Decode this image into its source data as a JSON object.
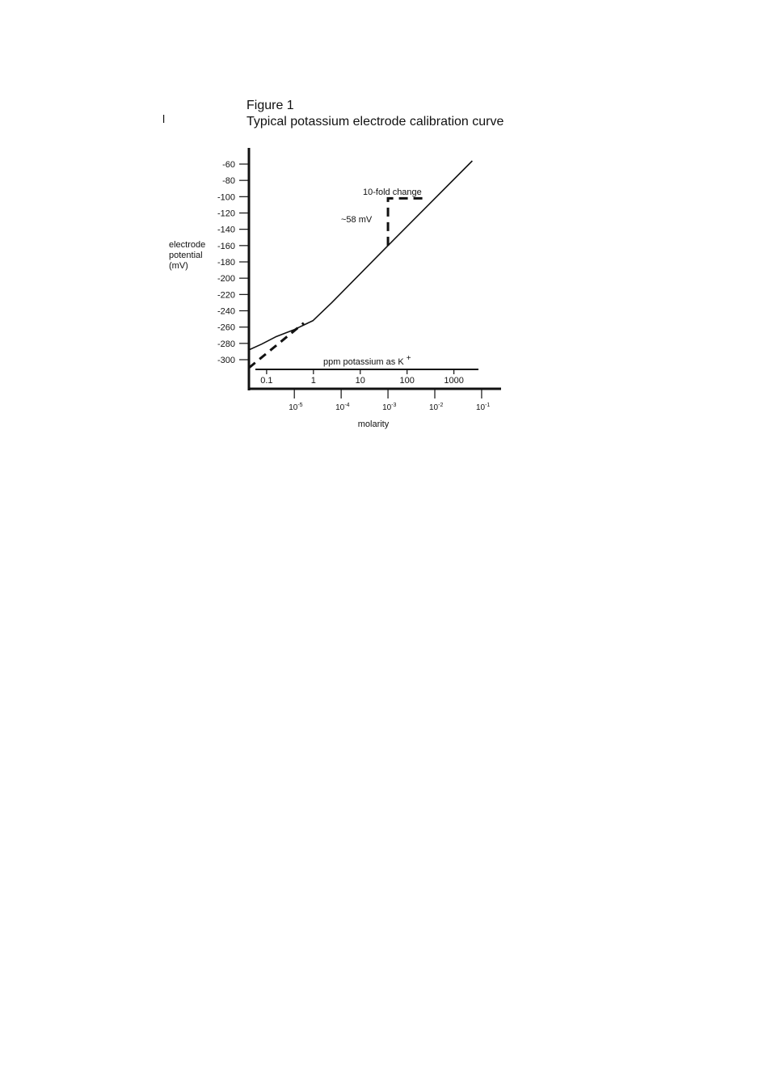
{
  "figure": {
    "number": "Figure 1",
    "title": "Typical potassium electrode calibration curve",
    "stray_mark": "l"
  },
  "chart_data": {
    "type": "line",
    "title": "Typical potassium electrode calibration curve",
    "ylabel_lines": [
      "electrode",
      "potential",
      "(mV)"
    ],
    "ylim": [
      -310,
      -60
    ],
    "y_ticks": [
      -60,
      -80,
      -100,
      -120,
      -140,
      -160,
      -180,
      -200,
      -220,
      -240,
      -260,
      -280,
      -300
    ],
    "x_log_molarity_range": [
      -5.97,
      -0.93
    ],
    "ppm_axis": {
      "label": "ppm potassium as K",
      "label_sup": "+",
      "ticks": [
        {
          "label": "0.1",
          "ppm": 0.1
        },
        {
          "label": "1",
          "ppm": 1
        },
        {
          "label": "10",
          "ppm": 10
        },
        {
          "label": "100",
          "ppm": 100
        },
        {
          "label": "1000",
          "ppm": 1000
        }
      ]
    },
    "molarity_axis": {
      "label": "molarity",
      "ticks": [
        {
          "base": "10",
          "exp": "-5",
          "log": -5
        },
        {
          "base": "10",
          "exp": "-4",
          "log": -4
        },
        {
          "base": "10",
          "exp": "-3",
          "log": -3
        },
        {
          "base": "10",
          "exp": "-2",
          "log": -2
        },
        {
          "base": "10",
          "exp": "-1",
          "log": -1
        }
      ]
    },
    "series": [
      {
        "style": "solid",
        "points": [
          {
            "log_m": -5.97,
            "mv": -288
          },
          {
            "log_m": -5.7,
            "mv": -281
          },
          {
            "log_m": -5.4,
            "mv": -272
          },
          {
            "log_m": -5.0,
            "mv": -263
          },
          {
            "log_m": -4.6,
            "mv": -252
          },
          {
            "log_m": -4.2,
            "mv": -230
          },
          {
            "log_m": -3.0,
            "mv": -160
          },
          {
            "log_m": -1.2,
            "mv": -56
          }
        ]
      },
      {
        "style": "dashed",
        "points": [
          {
            "log_m": -5.97,
            "mv": -310
          },
          {
            "log_m": -4.8,
            "mv": -255
          }
        ]
      }
    ],
    "annotations": {
      "ten_fold_label": "10-fold change",
      "slope_label": "~58 mV",
      "slope_triangle": {
        "log_m_start": -3.0,
        "log_m_end": -2.2,
        "mv_low": -160,
        "mv_high": -102
      }
    }
  }
}
